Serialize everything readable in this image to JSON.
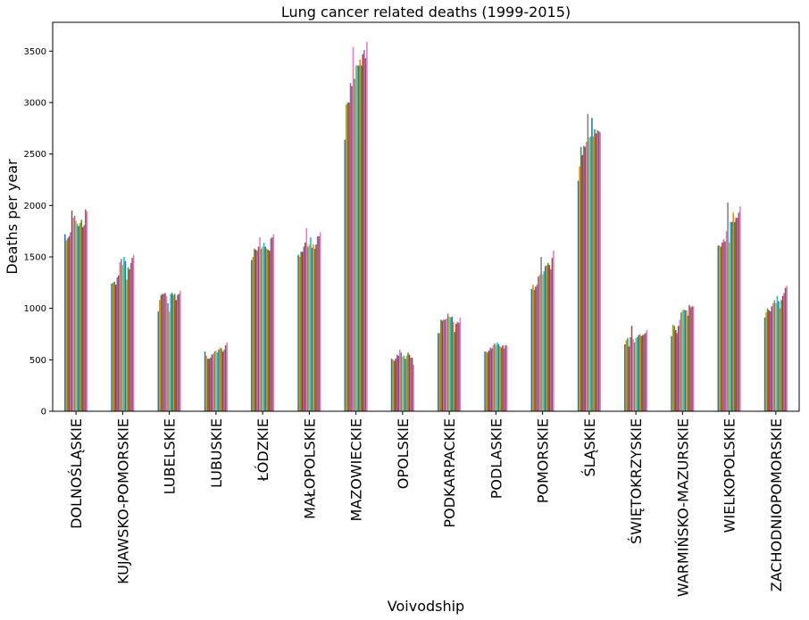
{
  "chart_data": {
    "type": "bar",
    "title": "Lung cancer related deaths (1999-2015)",
    "xlabel": "Voivodship",
    "ylabel": "Deaths per year",
    "ylim": [
      0,
      3780
    ],
    "yticks": [
      0,
      500,
      1000,
      1500,
      2000,
      2500,
      3000,
      3500
    ],
    "grid": false,
    "categories": [
      "DOLNOŚLĄSKIE",
      "KUJAWSKO-POMORSKIE",
      "LUBELSKIE",
      "LUBUSKIE",
      "ŁÓDZKIE",
      "MAŁOPOLSKIE",
      "MAZOWIECKIE",
      "OPOLSKIE",
      "PODKARPACKIE",
      "PODLASKIE",
      "POMORSKIE",
      "ŚLĄSKIE",
      "ŚWIĘTOKRZYSKIE",
      "WARMIŃSKO-MAZURSKIE",
      "WIELKOPOLSKIE",
      "ZACHODNIOPOMORSKIE"
    ],
    "series_colors": [
      "#1f77b4",
      "#ff7f0e",
      "#2ca02c",
      "#d62728",
      "#9467bd",
      "#8c564b",
      "#e377c2",
      "#7f7f7f",
      "#bcbd22",
      "#17becf",
      "#1f77b4",
      "#ff7f0e",
      "#2ca02c",
      "#d62728",
      "#9467bd",
      "#8c564b",
      "#e377c2"
    ],
    "series_values": [
      [
        1720,
        1660,
        1680,
        1700,
        1740,
        1950,
        1880,
        1900,
        1850,
        1820,
        1800,
        1830,
        1860,
        1790,
        1810,
        1960,
        1940
      ],
      [
        1240,
        1250,
        1260,
        1230,
        1300,
        1320,
        1450,
        1480,
        1420,
        1500,
        1460,
        1280,
        1400,
        1380,
        1440,
        1490,
        1520
      ],
      [
        970,
        1080,
        1130,
        1140,
        1140,
        1150,
        1120,
        1050,
        970,
        1140,
        1150,
        1130,
        1140,
        1080,
        1130,
        1140,
        1170
      ],
      [
        580,
        540,
        510,
        510,
        520,
        550,
        560,
        580,
        590,
        570,
        600,
        620,
        610,
        580,
        600,
        640,
        670
      ],
      [
        1470,
        1500,
        1580,
        1570,
        1560,
        1600,
        1690,
        1580,
        1600,
        1640,
        1600,
        1580,
        1570,
        1560,
        1680,
        1690,
        1720
      ],
      [
        1520,
        1500,
        1550,
        1550,
        1600,
        1640,
        1780,
        1600,
        1620,
        1690,
        1590,
        1620,
        1580,
        1620,
        1700,
        1700,
        1740
      ],
      [
        2640,
        2980,
        3000,
        3000,
        3190,
        3160,
        3540,
        3230,
        3360,
        3360,
        3360,
        3420,
        3360,
        3470,
        3510,
        3430,
        3590
      ],
      [
        510,
        500,
        490,
        510,
        550,
        540,
        600,
        570,
        530,
        540,
        510,
        540,
        570,
        550,
        520,
        520,
        450
      ],
      [
        760,
        760,
        890,
        880,
        890,
        890,
        900,
        950,
        920,
        910,
        920,
        870,
        770,
        850,
        870,
        860,
        910
      ],
      [
        580,
        580,
        570,
        590,
        620,
        610,
        640,
        660,
        640,
        670,
        650,
        630,
        620,
        640,
        610,
        640,
        640
      ],
      [
        1190,
        1230,
        1180,
        1210,
        1230,
        1310,
        1330,
        1500,
        1330,
        1360,
        1410,
        1420,
        1440,
        1420,
        1380,
        1490,
        1560
      ],
      [
        2240,
        2380,
        2570,
        2490,
        2580,
        2570,
        2620,
        2890,
        2660,
        2670,
        2850,
        2670,
        2740,
        2700,
        2730,
        2720,
        2710
      ],
      [
        650,
        690,
        710,
        630,
        720,
        830,
        700,
        670,
        710,
        720,
        740,
        750,
        730,
        740,
        750,
        760,
        790
      ],
      [
        730,
        840,
        830,
        790,
        760,
        830,
        890,
        960,
        980,
        990,
        980,
        980,
        930,
        1030,
        1010,
        1020,
        1020
      ],
      [
        1610,
        1610,
        1600,
        1640,
        1670,
        1650,
        1750,
        2030,
        1640,
        1840,
        1840,
        1930,
        1840,
        1880,
        1880,
        1930,
        1990
      ],
      [
        910,
        960,
        1000,
        980,
        970,
        1020,
        1050,
        1080,
        1050,
        1120,
        1070,
        1000,
        1080,
        1120,
        1150,
        1200,
        1220
      ]
    ]
  }
}
